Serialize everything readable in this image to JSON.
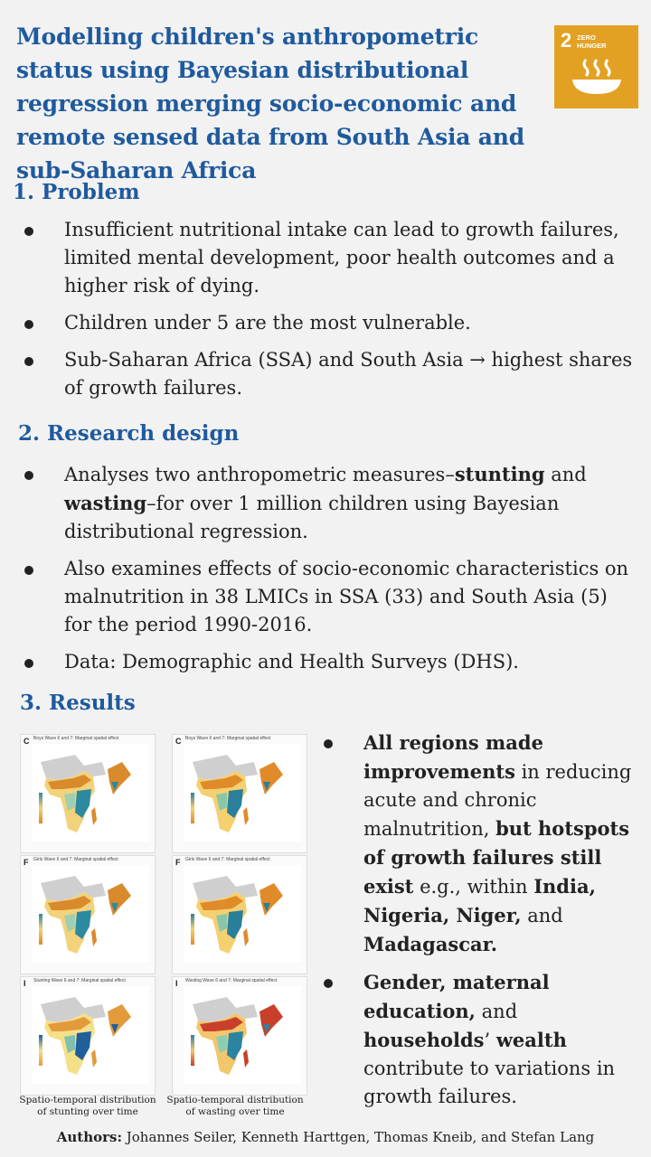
{
  "title": "Modelling children's anthropometric status using Bayesian distributional regression merging socio-economic and remote sensed data from South Asia and sub-Saharan Africa",
  "sdg_badge": {
    "number": "2",
    "label_line1": "ZERO",
    "label_line2": "HUNGER",
    "icon": "bowl-icon",
    "color": "#e3a123"
  },
  "problem": {
    "heading": "1. Problem",
    "bullets": [
      "Insufficient nutritional intake can lead to growth failures, limited mental development, poor health outcomes and a higher risk of dying.",
      "Children under 5 are the  most vulnerable.",
      "Sub-Saharan Africa (SSA) and South Asia → highest shares of growth failures."
    ]
  },
  "design": {
    "heading": "2. Research design",
    "b1_pre": "Analyses two anthropometric measures–",
    "b1_bold1": "stunting",
    "b1_mid": " and ",
    "b1_bold2": "wasting",
    "b1_post": "–for over 1 million children using Bayesian distributional regression.",
    "b2": "Also examines effects of socio-economic characteristics on malnutrition in 38 LMICs in SSA (33) and South Asia (5) for the period 1990-2016.",
    "b3": "Data: Demographic and Health Surveys (DHS)."
  },
  "results": {
    "heading": "3. Results",
    "maps": [
      {
        "letter": "C",
        "title": "Boys Wave 6 and 7: Marginal spatial effect"
      },
      {
        "letter": "C",
        "title": "Boys Wave 6 and 7: Marginal spatial effect"
      },
      {
        "letter": "F",
        "title": "Girls Wave 6 and 7: Marginal spatial effect"
      },
      {
        "letter": "F",
        "title": "Girls Wave 6 and 7: Marginal spatial effect"
      },
      {
        "letter": "I",
        "title": "Stunting Wave 6 and 7: Marginal spatial effect"
      },
      {
        "letter": "I",
        "title": "Wasting Wave 6 and 7: Marginal spatial effect"
      }
    ],
    "caption_left": "Spatio-temporal distribution of stunting over time",
    "caption_right": "Spatio-temporal distribution of wasting over time",
    "r1_b1": "All regions made improvements",
    "r1_t1": " in reducing acute and chronic malnutrition, ",
    "r1_b2": "but hotspots of growth failures still exist",
    "r1_t2": " e.g., within ",
    "r1_b3": "India, Nigeria, Niger,",
    "r1_t3": " and ",
    "r1_b4": "Madagascar.",
    "r2_b1": "Gender, maternal education,",
    "r2_t1": " and ",
    "r2_b2": "households",
    "r2_t2": "’ ",
    "r2_b3": "wealth",
    "r2_t3": " contribute to variations in growth failures."
  },
  "authors": {
    "label": "Authors:",
    "names": " Johannes Seiler, Kenneth Harttgen, Thomas Kneib, and Stefan Lang"
  }
}
